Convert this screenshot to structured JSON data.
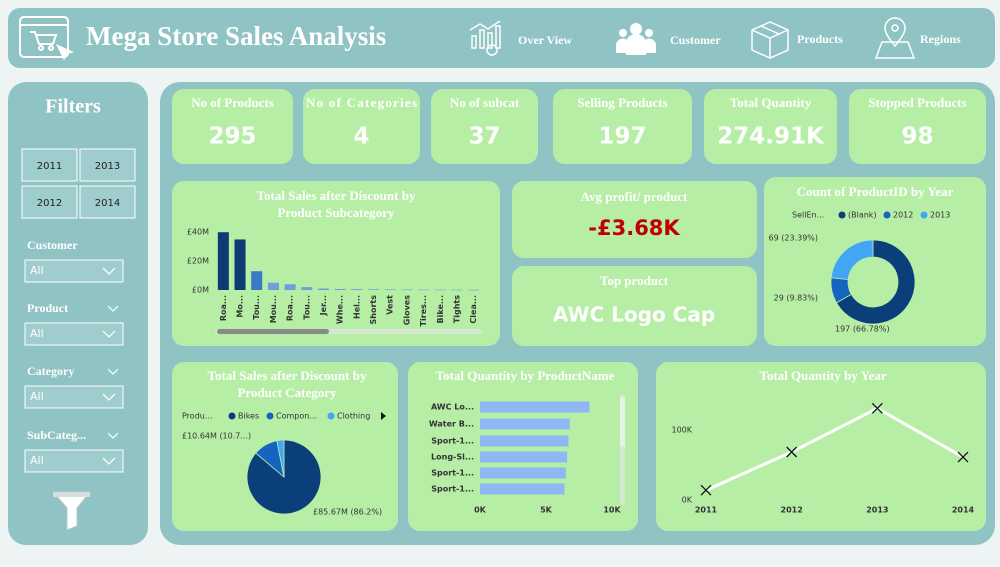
{
  "header": {
    "title": "Mega Store Sales Analysis",
    "nav": [
      "Over View",
      "Customer",
      "Products",
      "Regions"
    ]
  },
  "filters": {
    "title": "Filters",
    "years": [
      "2011",
      "2013",
      "2012",
      "2014"
    ],
    "dropdowns": [
      {
        "label": "Customer",
        "value": "All"
      },
      {
        "label": "Product",
        "value": "All"
      },
      {
        "label": "Category",
        "value": "All"
      },
      {
        "label": "SubCateg...",
        "value": "All"
      }
    ]
  },
  "kpis": [
    {
      "label": "No of Products",
      "value": 295
    },
    {
      "label": "No of Categories",
      "value": 4
    },
    {
      "label": "No of subcat",
      "value": 37
    },
    {
      "label": "Selling Products",
      "value": 197
    },
    {
      "label": "Total Quantity",
      "value": "274.91K"
    },
    {
      "label": "Stopped Products",
      "value": 98
    }
  ],
  "cards": [
    {
      "label": "Avg profit/ product",
      "value": "-£3.68K"
    },
    {
      "label": "Top product",
      "value": "AWC Logo Cap"
    }
  ],
  "chart_data": [
    {
      "type": "bar",
      "title": "Total Sales after Discount by Product Subcategory",
      "categories": [
        "Roa...",
        "Mo...",
        "Tou...",
        "Mou...",
        "Roa...",
        "Tou...",
        "Jer...",
        "Whe...",
        "Hel...",
        "Shorts",
        "Vest",
        "Gloves",
        "Tires...",
        "Bike...",
        "Tights",
        "Clea..."
      ],
      "values": [
        40,
        35,
        13,
        5,
        4,
        2,
        1,
        0.7,
        0.6,
        0.5,
        0.4,
        0.35,
        0.3,
        0.25,
        0.2,
        0.15
      ],
      "colors": [
        "#0d3b73",
        "#0d3b73",
        "#3a78c8",
        "#6a9fe0",
        "#6a9fe0",
        "#6a9fe0",
        "#6a9fe0",
        "#6a9fe0",
        "#6a9fe0",
        "#6a9fe0",
        "#6a9fe0",
        "#6a9fe0",
        "#6a9fe0",
        "#6a9fe0",
        "#6a9fe0",
        "#6a9fe0"
      ],
      "ylim": [
        0,
        45
      ],
      "yticks": [
        {
          "value": 0,
          "label": "£0M"
        },
        {
          "value": 20,
          "label": "£20M"
        },
        {
          "value": 40,
          "label": "£40M"
        }
      ]
    },
    {
      "type": "donut",
      "title": "Count of ProductID by Year",
      "legend_title": "SellEn...",
      "categories": [
        "(Blank)",
        "2012",
        "2013"
      ],
      "values": [
        197,
        29,
        69
      ],
      "value_labels": [
        "197 (66.78%)",
        "29 (9.83%)",
        "69 (23.39%)"
      ],
      "colors": [
        "#0b3f7a",
        "#1565c0",
        "#42a5f5"
      ]
    },
    {
      "type": "pie",
      "title": "Total Sales after Discount by Product Category",
      "legend_title": "Produ...",
      "categories": [
        "Bikes",
        "Compon...",
        "Clothing"
      ],
      "values": [
        85.67,
        10.64,
        3.07
      ],
      "value_labels": [
        "£85.67M (86.2%)",
        "£10.64M (10.7...)",
        null
      ],
      "colors": [
        "#0b3f7a",
        "#1565c0",
        "#42a5f5"
      ]
    },
    {
      "type": "bar",
      "orientation": "horizontal",
      "title": "Total Quantity by ProductName",
      "categories": [
        "AWC Lo...",
        "Water B...",
        "Sport-1...",
        "Long-Sl...",
        "Sport-1...",
        "Sport-1..."
      ],
      "values": [
        8300,
        6800,
        6700,
        6600,
        6500,
        6400
      ],
      "color": "#8db8f5",
      "xlim": [
        0,
        10000
      ],
      "xticks": [
        {
          "value": 0,
          "label": "0K"
        },
        {
          "value": 5000,
          "label": "5K"
        },
        {
          "value": 10000,
          "label": "10K"
        }
      ]
    },
    {
      "type": "line",
      "title": "Total Quantity by Year",
      "categories": [
        "2011",
        "2012",
        "2013",
        "2014"
      ],
      "series": [
        {
          "name": "Total Quantity",
          "color": "#ffffff",
          "values": [
            14000,
            68600,
            131000,
            61300
          ]
        }
      ],
      "ylim": [
        0,
        150000
      ],
      "yticks": [
        {
          "value": 0,
          "label": "0K"
        },
        {
          "value": 100000,
          "label": "100K"
        }
      ]
    }
  ]
}
